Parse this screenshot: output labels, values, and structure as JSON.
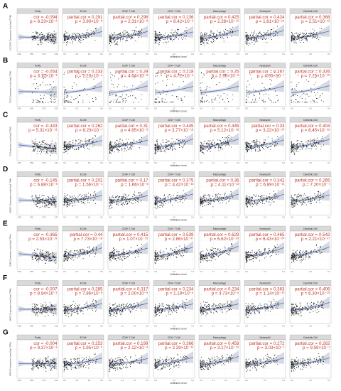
{
  "x_axis_label": "Infiltration Level",
  "columns": [
    "Purity",
    "B Cell",
    "CD8+ T Cell",
    "CD4+ T Cell",
    "Macrophage",
    "Neutrophil",
    "Dendritic Cell"
  ],
  "colors": {
    "panel_bg": "#ffffff",
    "strip_bg": "#d9d9d9",
    "point": "#1a1a1a",
    "fit_line": "#4a6fc8",
    "band": "#c9cdd6",
    "stat_text": "#c0392b"
  },
  "chart_data": {
    "type": "scatter",
    "rows": [
      {
        "letter": "A",
        "ylabel": "SLC28A1 Expression Level (log2 TPM)",
        "stats": [
          {
            "label": "cor",
            "value": "-0.094",
            "p": "8.23×10⁻²"
          },
          {
            "label": "partial.cor",
            "value": "0.291",
            "p": "3.90×10⁻⁸"
          },
          {
            "label": "partial.cor",
            "value": "0.296",
            "p": "2.31×10⁻⁸"
          },
          {
            "label": "partial.cor",
            "value": "0.236",
            "p": "8.42×10⁻⁶"
          },
          {
            "label": "partial.cor",
            "value": "0.425",
            "p": "2.28×10⁻¹⁶"
          },
          {
            "label": "partial.cor",
            "value": "0.424",
            "p": "1.61×10⁻¹⁵"
          },
          {
            "label": "partial.cor",
            "value": "0.368",
            "p": "2.51×10⁻¹²"
          }
        ]
      },
      {
        "letter": "B",
        "ylabel": "TXK1 Expression Level (log2 TPM)",
        "stats": [
          {
            "label": "cor",
            "value": "-0.054",
            "p": "3.12×10⁻¹"
          },
          {
            "label": "partial.cor",
            "value": "0.233",
            "p": "1.23×10⁻⁵"
          },
          {
            "label": "partial.cor",
            "value": "0.29",
            "p": "4.64×10⁻⁸"
          },
          {
            "label": "partial.cor",
            "value": "0.218",
            "p": "4.72×10⁻⁵"
          },
          {
            "label": "partial.cor",
            "value": "0.25",
            "p": "2.96×10⁻⁶"
          },
          {
            "label": "partial.cor",
            "value": "0.267",
            "p": "4.65×10⁻⁷"
          },
          {
            "label": "partial.cor",
            "value": "0.326",
            "p": "7.25×10⁻¹⁰"
          }
        ]
      },
      {
        "letter": "C",
        "ylabel": "F2 Expression Level (log2 TPM)",
        "stats": [
          {
            "label": "cor",
            "value": "-0.343",
            "p": "5.31×10⁻¹¹"
          },
          {
            "label": "partial.cor",
            "value": "0.262",
            "p": "8.23×10⁻⁷"
          },
          {
            "label": "partial.cor",
            "value": "0.31",
            "p": "4.65×10⁻⁹"
          },
          {
            "label": "partial.cor",
            "value": "0.445",
            "p": "3.77×10⁻¹⁸"
          },
          {
            "label": "partial.cor",
            "value": "0.445",
            "p": "5.12×10⁻¹⁸"
          },
          {
            "label": "partial.cor",
            "value": "0.33",
            "p": "3.22×10⁻¹⁰"
          },
          {
            "label": "partial.cor",
            "value": "0.404",
            "p": "8.45×10⁻¹⁵"
          }
        ]
      },
      {
        "letter": "D",
        "ylabel": "ADGRL3 Expression Level (log2 TPM)",
        "stats": [
          {
            "label": "cor",
            "value": "-0.145",
            "p": "6.88×10⁻³"
          },
          {
            "label": "partial.cor",
            "value": "0.202",
            "p": "1.56×10⁻⁴"
          },
          {
            "label": "partial.cor",
            "value": "0.17",
            "p": "1.66×10⁻³"
          },
          {
            "label": "partial.cor",
            "value": "0.375",
            "p": "4.42×10⁻¹³"
          },
          {
            "label": "partial.cor",
            "value": "0.36",
            "p": "4.11×10⁻¹²"
          },
          {
            "label": "partial.cor",
            "value": "0.342",
            "p": "6.89×10⁻¹¹"
          },
          {
            "label": "partial.cor",
            "value": "0.265",
            "p": "7.20×10⁻⁷"
          }
        ]
      },
      {
        "letter": "E",
        "ylabel": "EN02 Expression Level (log2 TPM)",
        "stats": [
          {
            "label": "cor",
            "value": "-0.365",
            "p": "2.53×10⁻¹²"
          },
          {
            "label": "partial.cor",
            "value": "0.44",
            "p": "7.73×10⁻¹⁸"
          },
          {
            "label": "partial.cor",
            "value": "0.415",
            "p": "1.07×10⁻¹⁵"
          },
          {
            "label": "partial.cor",
            "value": "0.539",
            "p": "2.86×10⁻²⁷"
          },
          {
            "label": "partial.cor",
            "value": "0.629",
            "p": "6.62×10⁻³⁹"
          },
          {
            "label": "partial.cor",
            "value": "0.465",
            "p": "6.43×10⁻²⁰"
          },
          {
            "label": "partial.cor",
            "value": "0.542",
            "p": "2.21×10⁻²⁷"
          }
        ]
      },
      {
        "letter": "F",
        "ylabel": "MPS1 Expression Level (log2 TPM)",
        "stats": [
          {
            "label": "cor",
            "value": "-0.007",
            "p": "8.94×10⁻¹"
          },
          {
            "label": "partial.cor",
            "value": "0.285",
            "p": "7.86×10⁻⁸"
          },
          {
            "label": "partial.cor",
            "value": "0.317",
            "p": "2.00×10⁻⁹"
          },
          {
            "label": "partial.cor",
            "value": "0.234",
            "p": "1.19×10⁻⁵"
          },
          {
            "label": "partial.cor",
            "value": "0.234",
            "p": "4.73×10⁻⁵"
          },
          {
            "label": "partial.cor",
            "value": "0.363",
            "p": "1.14×10⁻¹²"
          },
          {
            "label": "partial.cor",
            "value": "0.406",
            "p": "6.30×10⁻¹⁵"
          }
        ]
      },
      {
        "letter": "G",
        "ylabel": "PPP1R Expression Level (log2 TPM)",
        "stats": [
          {
            "label": "cor",
            "value": "-0.004",
            "p": "9.37×10⁻¹"
          },
          {
            "label": "partial.cor",
            "value": "0.253",
            "p": "1.95×10⁻⁶"
          },
          {
            "label": "partial.cor",
            "value": "0.199",
            "p": "2.12×10⁻⁴"
          },
          {
            "label": "partial.cor",
            "value": "0.366",
            "p": "2.29×10⁻¹²"
          },
          {
            "label": "partial.cor",
            "value": "0.458",
            "p": "3.17×10⁻¹⁹"
          },
          {
            "label": "partial.cor",
            "value": "0.272",
            "p": "3.03×10⁻⁷"
          },
          {
            "label": "partial.cor",
            "value": "0.262",
            "p": "9.59×10⁻⁷"
          }
        ]
      }
    ],
    "xlim_by_column": [
      [
        0.2,
        1.0
      ],
      [
        0.0,
        0.6
      ],
      [
        0.0,
        0.8
      ],
      [
        0.0,
        0.6
      ],
      [
        0.0,
        0.4
      ],
      [
        0.0,
        0.3
      ],
      [
        0.0,
        0.6
      ]
    ],
    "xticks_by_column": [
      [
        "0.25",
        "0.50",
        "0.75",
        "1.00"
      ],
      [
        "0.0",
        "0.2",
        "0.4",
        "0.6"
      ],
      [
        "0.0",
        "0.2",
        "0.4",
        "0.6"
      ],
      [
        "0.0",
        "0.2",
        "0.4"
      ],
      [
        "0.0",
        "0.1",
        "0.2",
        "0.3"
      ],
      [
        "0.0",
        "0.1",
        "0.2"
      ],
      [
        "0.0",
        "0.2",
        "0.4"
      ]
    ],
    "grid": true
  }
}
